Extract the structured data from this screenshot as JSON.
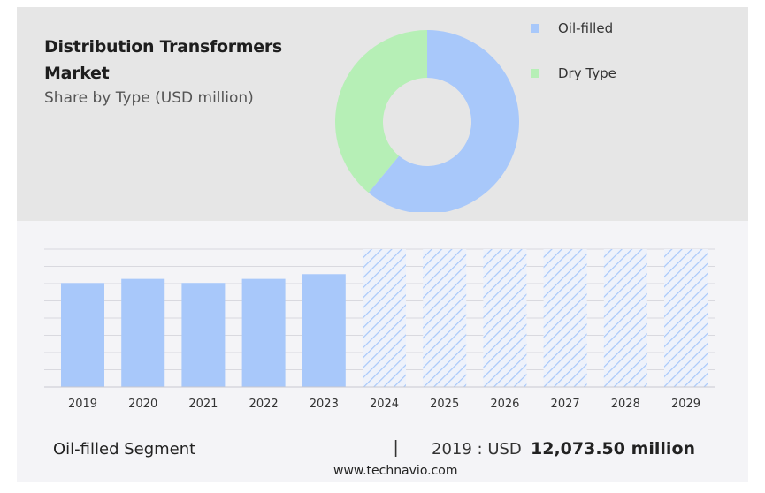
{
  "header": {
    "title": "Distribution Transformers Market",
    "subtitle": "Share by Type (USD million)"
  },
  "colors": {
    "oil_filled": "#a8c8fa",
    "dry_type": "#b6efb6",
    "forecast_hatch": "#a8c8fa",
    "top_panel_bg": "#e6e6e6",
    "bottom_panel_bg": "#f4f4f7"
  },
  "chart_data": [
    {
      "type": "pie",
      "variant": "donut",
      "legend_placement": "right",
      "series": [
        {
          "name": "Oil-filled",
          "share": 0.61,
          "color": "#a8c8fa"
        },
        {
          "name": "Dry Type",
          "share": 0.39,
          "color": "#b6efb6"
        }
      ]
    },
    {
      "type": "bar",
      "categories": [
        "2019",
        "2020",
        "2021",
        "2022",
        "2023",
        "2024",
        "2025",
        "2026",
        "2027",
        "2028",
        "2029"
      ],
      "values": [
        12073.5,
        12550,
        12080,
        12550,
        13100,
        null,
        null,
        null,
        null,
        null,
        null
      ],
      "forecast_categories": [
        "2024",
        "2025",
        "2026",
        "2027",
        "2028",
        "2029"
      ],
      "ylim": [
        0,
        16000
      ],
      "grid": true
    }
  ],
  "footer": {
    "segment_label": "Oil-filled Segment",
    "divider": "|",
    "stat_year": "2019 : USD",
    "stat_value": "12,073.50 million",
    "source": "www.technavio.com"
  }
}
